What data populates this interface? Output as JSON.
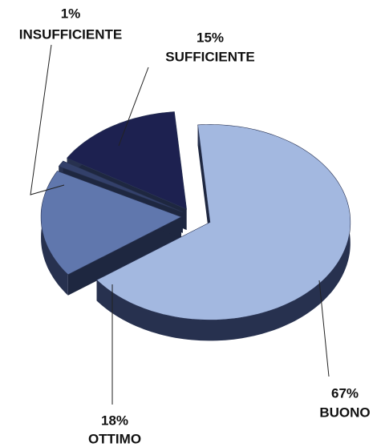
{
  "chart_data": {
    "type": "pie",
    "categories": [
      "BUONO",
      "OTTIMO",
      "INSUFFICIENTE",
      "SUFFICIENTE"
    ],
    "values": [
      67,
      18,
      1,
      15
    ],
    "value_labels": [
      "67%",
      "18%",
      "1%",
      "15%"
    ],
    "colors": [
      "#a3b8e0",
      "#6077ad",
      "#33406a",
      "#1d2150"
    ]
  }
}
